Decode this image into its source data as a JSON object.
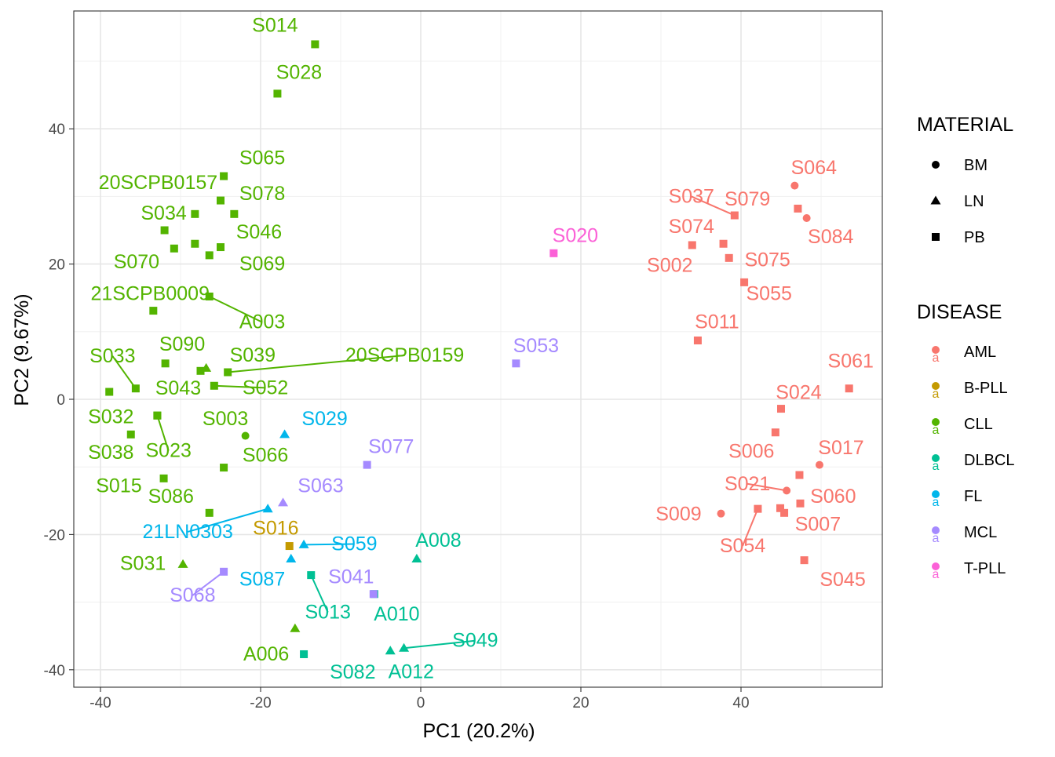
{
  "chart_data": {
    "type": "scatter",
    "title": "",
    "xlabel": "PC1 (20.2%)",
    "ylabel": "PC2 (9.67%)",
    "xlim": [
      -42,
      58
    ],
    "ylim": [
      -42,
      57
    ],
    "x_ticks": [
      -40,
      -20,
      0,
      20,
      40
    ],
    "y_ticks": [
      -40,
      -20,
      0,
      20,
      40
    ],
    "x_tick_labels": [
      "-40",
      "-20",
      "0",
      "20",
      "40"
    ],
    "y_tick_labels": [
      "-40",
      "-20",
      "0",
      "20",
      "40"
    ],
    "grid": true,
    "legend_position": "right",
    "legend_material": {
      "title": "MATERIAL",
      "items": [
        {
          "label": "BM",
          "shape": "circle"
        },
        {
          "label": "LN",
          "shape": "triangle"
        },
        {
          "label": "PB",
          "shape": "square"
        }
      ]
    },
    "legend_disease": {
      "title": "DISEASE",
      "items": [
        {
          "label": "AML",
          "color": "#F8766D"
        },
        {
          "label": "B-PLL",
          "color": "#C49A00"
        },
        {
          "label": "CLL",
          "color": "#53B400"
        },
        {
          "label": "DLBCL",
          "color": "#00C094"
        },
        {
          "label": "FL",
          "color": "#00B6EB"
        },
        {
          "label": "MCL",
          "color": "#A58AFF"
        },
        {
          "label": "T-PLL",
          "color": "#FB61D7"
        }
      ]
    },
    "points": [
      {
        "label": "S014",
        "x": -13.2,
        "y": 52.5,
        "disease": "CLL",
        "material": "PB",
        "lx": -18.2,
        "ly": 55.3
      },
      {
        "label": "S028",
        "x": -17.9,
        "y": 45.2,
        "disease": "CLL",
        "material": "PB",
        "lx": -15.2,
        "ly": 48.3
      },
      {
        "label": "S065",
        "x": -24.6,
        "y": 33.0,
        "disease": "CLL",
        "material": "PB",
        "lx": -19.8,
        "ly": 35.7
      },
      {
        "label": "20SCPB0157",
        "x": -25.0,
        "y": 29.4,
        "disease": "CLL",
        "material": "PB",
        "lx": -32.8,
        "ly": 32.0
      },
      {
        "label": "S078",
        "x": -23.3,
        "y": 27.4,
        "disease": "CLL",
        "material": "PB",
        "lx": -19.8,
        "ly": 30.4
      },
      {
        "label": "S034",
        "x": -28.2,
        "y": 27.4,
        "disease": "CLL",
        "material": "PB",
        "lx": -32.1,
        "ly": 27.5
      },
      {
        "label": "S046",
        "x": -32.0,
        "y": 25.0,
        "disease": "CLL",
        "material": "PB",
        "lx": -20.2,
        "ly": 24.7
      },
      {
        "label": "S070",
        "x": -30.8,
        "y": 22.3,
        "disease": "CLL",
        "material": "PB",
        "lx": -35.5,
        "ly": 20.3
      },
      {
        "label": "S069",
        "x": -28.2,
        "y": 23.0,
        "disease": "CLL",
        "material": "PB",
        "lx": -19.8,
        "ly": 20.0
      },
      {
        "label": "S069b",
        "x": -25.0,
        "y": 22.5,
        "disease": "CLL",
        "material": "PB",
        "hidelabel": true
      },
      {
        "label": "S069c",
        "x": -26.4,
        "y": 21.3,
        "disease": "CLL",
        "material": "PB",
        "hidelabel": true
      },
      {
        "label": "21SCPB0009",
        "x": -33.4,
        "y": 13.1,
        "disease": "CLL",
        "material": "PB",
        "lx": -33.8,
        "ly": 15.6
      },
      {
        "label": "A003",
        "x": -26.4,
        "y": 15.2,
        "disease": "CLL",
        "material": "PB",
        "lx": -19.8,
        "ly": 11.4,
        "line": true
      },
      {
        "label": "S033",
        "x": -35.6,
        "y": 1.6,
        "disease": "CLL",
        "material": "PB",
        "lx": -38.5,
        "ly": 6.4,
        "line": true
      },
      {
        "label": "S090",
        "x": -31.9,
        "y": 5.3,
        "disease": "CLL",
        "material": "PB",
        "lx": -29.8,
        "ly": 8.1
      },
      {
        "label": "S039",
        "x": -26.8,
        "y": 4.6,
        "disease": "CLL",
        "material": "LN",
        "lx": -21.0,
        "ly": 6.5
      },
      {
        "label": "20SCPB0159",
        "x": -24.1,
        "y": 4.0,
        "disease": "CLL",
        "material": "PB",
        "lx": -2.0,
        "ly": 6.5,
        "line": true
      },
      {
        "label": "S090b",
        "x": -27.5,
        "y": 4.2,
        "disease": "CLL",
        "material": "PB",
        "hidelabel": true
      },
      {
        "label": "S043",
        "x": -38.9,
        "y": 1.1,
        "disease": "CLL",
        "material": "PB",
        "lx": -30.3,
        "ly": 1.6
      },
      {
        "label": "S052",
        "x": -25.8,
        "y": 2.0,
        "disease": "CLL",
        "material": "PB",
        "lx": -19.4,
        "ly": 1.7,
        "line": true
      },
      {
        "label": "S032",
        "x": -32.9,
        "y": -2.4,
        "disease": "CLL",
        "material": "PB",
        "lx": -38.7,
        "ly": -2.6
      },
      {
        "label": "S003",
        "x": -21.9,
        "y": -5.4,
        "disease": "CLL",
        "material": "BM",
        "lx": -24.4,
        "ly": -2.9
      },
      {
        "label": "S038",
        "x": -36.2,
        "y": -5.2,
        "disease": "CLL",
        "material": "PB",
        "lx": -38.7,
        "ly": -7.9
      },
      {
        "label": "S023",
        "x": -32.9,
        "y": -2.4,
        "disease": "CLL",
        "material": "PB",
        "lx": -31.5,
        "ly": -7.6,
        "line": true
      },
      {
        "label": "S066",
        "x": -24.6,
        "y": -10.1,
        "disease": "CLL",
        "material": "PB",
        "lx": -19.4,
        "ly": -8.3
      },
      {
        "label": "S015",
        "x": -32.1,
        "y": -11.7,
        "disease": "CLL",
        "material": "PB",
        "lx": -37.7,
        "ly": -12.8
      },
      {
        "label": "S086",
        "x": -26.4,
        "y": -16.8,
        "disease": "CLL",
        "material": "PB",
        "lx": -31.2,
        "ly": -14.4
      },
      {
        "label": "S031",
        "x": -29.7,
        "y": -24.4,
        "disease": "CLL",
        "material": "LN",
        "lx": -34.7,
        "ly": -24.3
      },
      {
        "label": "A006",
        "x": -15.7,
        "y": -33.9,
        "disease": "CLL",
        "material": "LN",
        "lx": -19.3,
        "ly": -37.7
      },
      {
        "label": "S013",
        "x": -13.7,
        "y": -26.0,
        "disease": "DLBCL",
        "material": "PB",
        "lx": -11.6,
        "ly": -31.5,
        "line": true
      },
      {
        "label": "S082",
        "x": -14.6,
        "y": -37.7,
        "disease": "DLBCL",
        "material": "PB",
        "lx": -8.5,
        "ly": -40.4
      },
      {
        "label": "A008",
        "x": -0.5,
        "y": -23.6,
        "disease": "DLBCL",
        "material": "LN",
        "lx": 2.2,
        "ly": -20.9
      },
      {
        "label": "A010",
        "x": -5.8,
        "y": -28.8,
        "disease": "DLBCL",
        "material": "PB",
        "lx": -3.0,
        "ly": -31.8
      },
      {
        "label": "A012",
        "x": -3.8,
        "y": -37.2,
        "disease": "DLBCL",
        "material": "LN",
        "lx": -1.2,
        "ly": -40.3
      },
      {
        "label": "S049",
        "x": -2.1,
        "y": -36.8,
        "disease": "DLBCL",
        "material": "LN",
        "lx": 6.8,
        "ly": -35.7,
        "line": true
      },
      {
        "label": "S029",
        "x": -17.0,
        "y": -5.2,
        "disease": "FL",
        "material": "LN",
        "lx": -12.0,
        "ly": -2.9
      },
      {
        "label": "21LN0303",
        "x": -19.1,
        "y": -16.2,
        "disease": "FL",
        "material": "LN",
        "lx": -29.1,
        "ly": -19.6,
        "line": true
      },
      {
        "label": "S059",
        "x": -14.6,
        "y": -21.5,
        "disease": "FL",
        "material": "LN",
        "lx": -8.3,
        "ly": -21.4,
        "line": true
      },
      {
        "label": "S087",
        "x": -16.2,
        "y": -23.6,
        "disease": "FL",
        "material": "LN",
        "lx": -19.8,
        "ly": -26.6
      },
      {
        "label": "S016",
        "x": -16.4,
        "y": -21.7,
        "disease": "B-PLL",
        "material": "PB",
        "lx": -18.1,
        "ly": -19.1
      },
      {
        "label": "S063",
        "x": -17.2,
        "y": -15.3,
        "disease": "MCL",
        "material": "LN",
        "lx": -12.5,
        "ly": -12.8
      },
      {
        "label": "S077",
        "x": -6.7,
        "y": -9.7,
        "disease": "MCL",
        "material": "PB",
        "lx": -3.7,
        "ly": -7.0
      },
      {
        "label": "S041",
        "x": -5.9,
        "y": -28.8,
        "disease": "MCL",
        "material": "PB",
        "lx": -8.7,
        "ly": -26.3
      },
      {
        "label": "S068",
        "x": -24.6,
        "y": -25.5,
        "disease": "MCL",
        "material": "PB",
        "lx": -28.5,
        "ly": -29.0,
        "line": true
      },
      {
        "label": "S053",
        "x": 11.9,
        "y": 5.3,
        "disease": "MCL",
        "material": "PB",
        "lx": 14.4,
        "ly": 7.9
      },
      {
        "label": "S020",
        "x": 16.6,
        "y": 21.6,
        "disease": "T-PLL",
        "material": "PB",
        "lx": 19.3,
        "ly": 24.2
      },
      {
        "label": "S064",
        "x": 46.7,
        "y": 31.6,
        "disease": "AML",
        "material": "BM",
        "lx": 49.1,
        "ly": 34.2
      },
      {
        "label": "S037",
        "x": 39.2,
        "y": 27.2,
        "disease": "AML",
        "material": "PB",
        "lx": 33.8,
        "ly": 30.0,
        "line": true
      },
      {
        "label": "S079",
        "x": 47.1,
        "y": 28.2,
        "disease": "AML",
        "material": "PB",
        "lx": 40.8,
        "ly": 29.6
      },
      {
        "label": "S084",
        "x": 48.2,
        "y": 26.8,
        "disease": "AML",
        "material": "BM",
        "lx": 51.2,
        "ly": 24.0
      },
      {
        "label": "S074",
        "x": 37.8,
        "y": 23.0,
        "disease": "AML",
        "material": "PB",
        "lx": 33.8,
        "ly": 25.5
      },
      {
        "label": "S002",
        "x": 33.9,
        "y": 22.8,
        "disease": "AML",
        "material": "PB",
        "lx": 31.1,
        "ly": 19.8
      },
      {
        "label": "S075",
        "x": 38.5,
        "y": 20.9,
        "disease": "AML",
        "material": "PB",
        "lx": 43.3,
        "ly": 20.6
      },
      {
        "label": "S055",
        "x": 40.4,
        "y": 17.3,
        "disease": "AML",
        "material": "PB",
        "lx": 43.5,
        "ly": 15.6
      },
      {
        "label": "S011",
        "x": 34.6,
        "y": 8.7,
        "disease": "AML",
        "material": "PB",
        "lx": 37.0,
        "ly": 11.4
      },
      {
        "label": "S061",
        "x": 53.5,
        "y": 1.6,
        "disease": "AML",
        "material": "PB",
        "lx": 53.7,
        "ly": 5.6
      },
      {
        "label": "S024",
        "x": 45.0,
        "y": -1.4,
        "disease": "AML",
        "material": "PB",
        "lx": 47.2,
        "ly": 1.0
      },
      {
        "label": "S006",
        "x": 44.3,
        "y": -4.9,
        "disease": "AML",
        "material": "PB",
        "lx": 41.3,
        "ly": -7.7
      },
      {
        "label": "S017",
        "x": 49.8,
        "y": -9.7,
        "disease": "AML",
        "material": "BM",
        "lx": 52.5,
        "ly": -7.2
      },
      {
        "label": "S021",
        "x": 45.7,
        "y": -13.5,
        "disease": "AML",
        "material": "BM",
        "lx": 40.8,
        "ly": -12.5,
        "line": true
      },
      {
        "label": "S060",
        "x": 47.3,
        "y": -11.2,
        "disease": "AML",
        "material": "PB",
        "lx": 51.5,
        "ly": -14.4
      },
      {
        "label": "S009",
        "x": 37.5,
        "y": -16.9,
        "disease": "AML",
        "material": "BM",
        "lx": 32.2,
        "ly": -17.0
      },
      {
        "label": "S007",
        "x": 47.4,
        "y": -15.4,
        "disease": "AML",
        "material": "PB",
        "lx": 49.6,
        "ly": -18.5
      },
      {
        "label": "S007b",
        "x": 44.9,
        "y": -16.1,
        "disease": "AML",
        "material": "PB",
        "hidelabel": true
      },
      {
        "label": "S007c",
        "x": 45.4,
        "y": -16.8,
        "disease": "AML",
        "material": "PB",
        "hidelabel": true
      },
      {
        "label": "S054",
        "x": 42.1,
        "y": -16.2,
        "disease": "AML",
        "material": "PB",
        "lx": 40.2,
        "ly": -21.7,
        "line": true
      },
      {
        "label": "S045",
        "x": 47.9,
        "y": -23.8,
        "disease": "AML",
        "material": "PB",
        "lx": 52.7,
        "ly": -26.7
      }
    ]
  }
}
